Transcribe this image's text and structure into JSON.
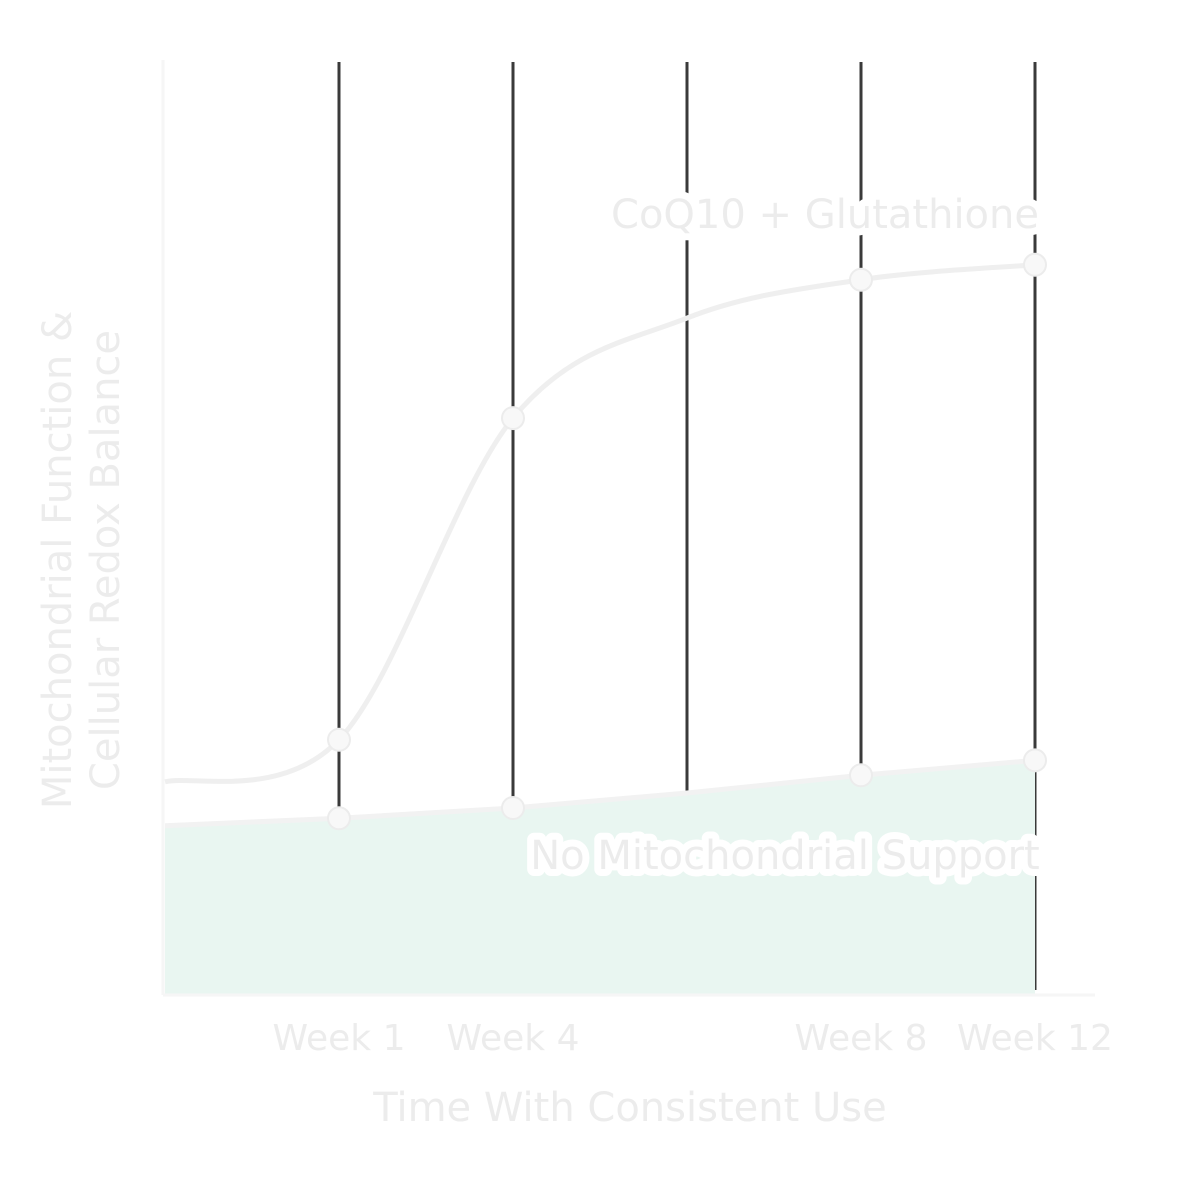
{
  "chart_data": {
    "type": "line",
    "xlabel": "Time With Consistent Use",
    "ylabel": [
      "Mitochondrial Function &",
      "Cellular Redox Balance"
    ],
    "categories": [
      null,
      "Week 1",
      "Week 4",
      null,
      "Week 8",
      "Week 12"
    ],
    "ylim": [
      0,
      100
    ],
    "series": [
      {
        "name": "CoQ10 + Glutathione",
        "color": "#efefef",
        "values": [
          22.8,
          27.3,
          61.7,
          72.4,
          76.5,
          78.1
        ]
      },
      {
        "name": "No Mitochondrial Support",
        "color": "#f2f2f2",
        "fill": "#e9f6f1",
        "values": [
          18.1,
          18.9,
          20.0,
          21.6,
          23.5,
          25.1
        ]
      }
    ]
  }
}
